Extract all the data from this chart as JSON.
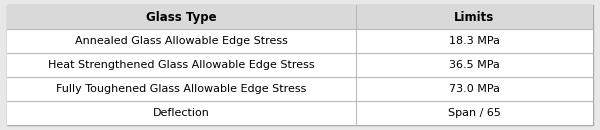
{
  "header": [
    "Glass Type",
    "Limits"
  ],
  "rows": [
    [
      "Annealed Glass Allowable Edge Stress",
      "18.3 MPa"
    ],
    [
      "Heat Strengthened Glass Allowable Edge Stress",
      "36.5 MPa"
    ],
    [
      "Fully Toughened Glass Allowable Edge Stress",
      "73.0 MPa"
    ],
    [
      "Deflection",
      "Span / 65"
    ]
  ],
  "header_bg": "#d9d9d9",
  "row_bg": "#ffffff",
  "outer_bg": "#e8e8e8",
  "border_color": "#aaaaaa",
  "line_color": "#bbbbbb",
  "header_fontsize": 8.5,
  "row_fontsize": 8.0,
  "header_font_weight": "bold",
  "col_split": 0.595,
  "fig_width": 6.0,
  "fig_height": 1.3,
  "dpi": 100
}
